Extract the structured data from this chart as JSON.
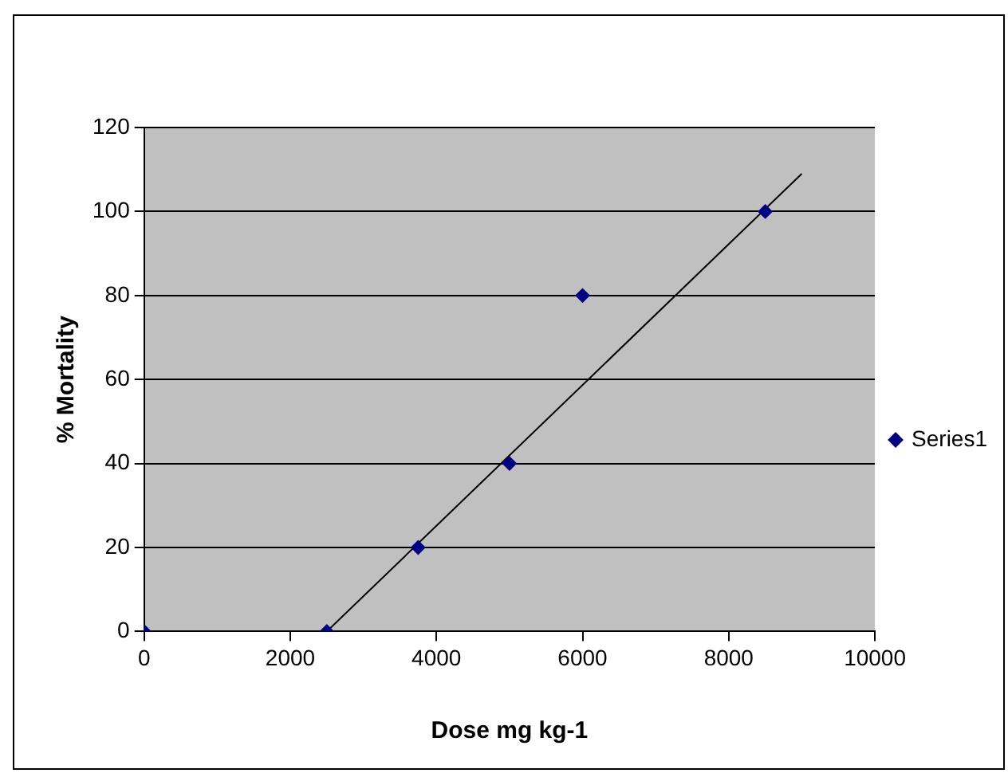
{
  "chart_data": {
    "type": "scatter",
    "xlabel": "Dose mg kg-1",
    "ylabel": "% Mortality",
    "x": [
      0,
      2500,
      3750,
      5000,
      6000,
      8500
    ],
    "series": [
      {
        "name": "Series1",
        "color": "#000080",
        "values": [
          0,
          0,
          20,
          40,
          80,
          100
        ],
        "marker": "diamond"
      },
      {
        "type": "line",
        "color": "#000000",
        "x": [
          2500,
          9000
        ],
        "values": [
          0,
          109
        ],
        "marker": "none"
      }
    ],
    "xlim": [
      0,
      10000
    ],
    "xticks": [
      0,
      2000,
      4000,
      6000,
      8000,
      10000
    ],
    "ylim": [
      0,
      120
    ],
    "yticks": [
      0,
      20,
      40,
      60,
      80,
      100,
      120
    ],
    "grid": "y",
    "legend": "right"
  }
}
